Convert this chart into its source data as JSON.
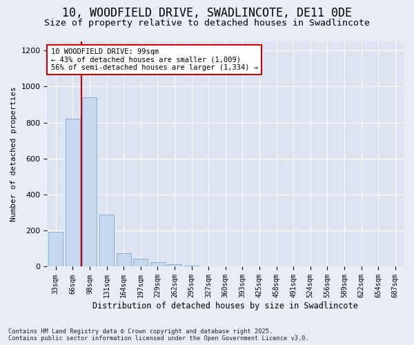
{
  "title1": "10, WOODFIELD DRIVE, SWADLINCOTE, DE11 0DE",
  "title2": "Size of property relative to detached houses in Swadlincote",
  "xlabel": "Distribution of detached houses by size in Swadlincote",
  "ylabel": "Number of detached properties",
  "categories": [
    "33sqm",
    "66sqm",
    "98sqm",
    "131sqm",
    "164sqm",
    "197sqm",
    "229sqm",
    "262sqm",
    "295sqm",
    "327sqm",
    "360sqm",
    "393sqm",
    "425sqm",
    "458sqm",
    "491sqm",
    "524sqm",
    "556sqm",
    "589sqm",
    "622sqm",
    "654sqm",
    "687sqm"
  ],
  "values": [
    195,
    820,
    940,
    290,
    75,
    45,
    25,
    12,
    5,
    0,
    0,
    0,
    0,
    0,
    0,
    0,
    0,
    0,
    0,
    0,
    0
  ],
  "bar_color": "#c5d8ed",
  "bar_edge_color": "#8ab0d0",
  "vline_color": "#cc0000",
  "annotation_text": "10 WOODFIELD DRIVE: 99sqm\n← 43% of detached houses are smaller (1,009)\n56% of semi-detached houses are larger (1,334) →",
  "annotation_box_color": "#ffffff",
  "annotation_box_edge": "#cc0000",
  "ylim": [
    0,
    1250
  ],
  "yticks": [
    0,
    200,
    400,
    600,
    800,
    1000,
    1200
  ],
  "bg_color": "#e8ecf4",
  "plot_bg_color": "#dde3f0",
  "footer": "Contains HM Land Registry data © Crown copyright and database right 2025.\nContains public sector information licensed under the Open Government Licence v3.0.",
  "title1_fontsize": 12,
  "title2_fontsize": 9.5,
  "grid_color": "#ffffff"
}
